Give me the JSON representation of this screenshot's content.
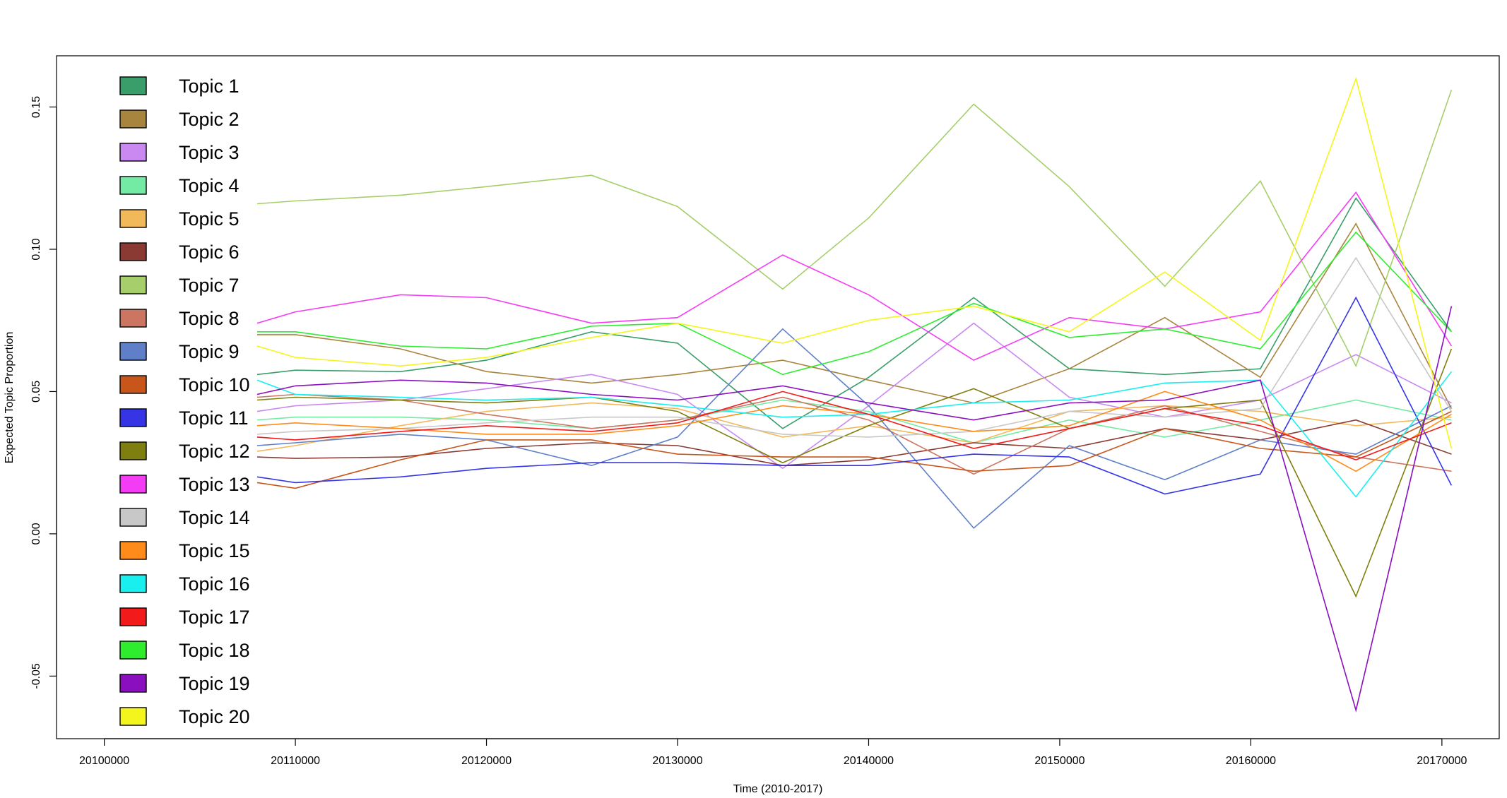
{
  "chart_data": {
    "type": "line",
    "xlabel": "Time (2010-2017)",
    "ylabel": "Expected Topic Proportion",
    "xlim": [
      20097500,
      20173000
    ],
    "ylim": [
      -0.072,
      0.168
    ],
    "x_ticks": [
      20100000,
      20110000,
      20120000,
      20130000,
      20140000,
      20150000,
      20160000,
      20170000
    ],
    "x_tick_labels": [
      "20100000",
      "20110000",
      "20120000",
      "20130000",
      "20140000",
      "20150000",
      "20160000",
      "20170000"
    ],
    "y_ticks": [
      -0.05,
      0.0,
      0.05,
      0.1,
      0.15
    ],
    "y_tick_labels": [
      "-0.05",
      "0.00",
      "0.05",
      "0.10",
      "0.15"
    ],
    "legend_position": "top-left",
    "grid": false,
    "x": [
      20108000,
      20110000,
      20115500,
      20120000,
      20125500,
      20130000,
      20135500,
      20140000,
      20145500,
      20150500,
      20155500,
      20160500,
      20165500,
      20170500
    ],
    "series": [
      {
        "name": "Topic 1",
        "color": "#3A9E6A",
        "values": [
          0.056,
          0.0575,
          0.057,
          0.061,
          0.071,
          0.067,
          0.037,
          0.055,
          0.083,
          0.058,
          0.056,
          0.058,
          0.118,
          0.071
        ]
      },
      {
        "name": "Topic 2",
        "color": "#A8853F",
        "values": [
          0.07,
          0.07,
          0.065,
          0.057,
          0.053,
          0.056,
          0.061,
          0.054,
          0.046,
          0.058,
          0.076,
          0.055,
          0.109,
          0.044
        ]
      },
      {
        "name": "Topic 3",
        "color": "#C989F0",
        "values": [
          0.043,
          0.045,
          0.047,
          0.051,
          0.056,
          0.049,
          0.023,
          0.045,
          0.074,
          0.048,
          0.041,
          0.047,
          0.063,
          0.046
        ]
      },
      {
        "name": "Topic 4",
        "color": "#74EBA5",
        "values": [
          0.04,
          0.041,
          0.041,
          0.04,
          0.037,
          0.04,
          0.047,
          0.043,
          0.032,
          0.04,
          0.034,
          0.04,
          0.047,
          0.04
        ]
      },
      {
        "name": "Topic 5",
        "color": "#F2B95A",
        "values": [
          0.029,
          0.031,
          0.038,
          0.043,
          0.046,
          0.044,
          0.034,
          0.038,
          0.032,
          0.043,
          0.045,
          0.043,
          0.038,
          0.041
        ]
      },
      {
        "name": "Topic 6",
        "color": "#8B3A33",
        "values": [
          0.027,
          0.0265,
          0.027,
          0.03,
          0.032,
          0.031,
          0.024,
          0.026,
          0.032,
          0.03,
          0.037,
          0.033,
          0.04,
          0.028
        ]
      },
      {
        "name": "Topic 7",
        "color": "#A6CE6A",
        "values": [
          0.116,
          0.117,
          0.119,
          0.122,
          0.126,
          0.115,
          0.086,
          0.111,
          0.151,
          0.122,
          0.087,
          0.124,
          0.059,
          0.156
        ]
      },
      {
        "name": "Topic 8",
        "color": "#CC7560",
        "values": [
          0.048,
          0.049,
          0.047,
          0.042,
          0.037,
          0.04,
          0.048,
          0.04,
          0.021,
          0.037,
          0.045,
          0.036,
          0.027,
          0.022
        ]
      },
      {
        "name": "Topic 9",
        "color": "#5F7FC9",
        "values": [
          0.031,
          0.032,
          0.035,
          0.033,
          0.024,
          0.034,
          0.072,
          0.045,
          0.002,
          0.031,
          0.019,
          0.033,
          0.028,
          0.045
        ]
      },
      {
        "name": "Topic 10",
        "color": "#C8561A",
        "values": [
          0.018,
          0.016,
          0.026,
          0.033,
          0.033,
          0.028,
          0.027,
          0.027,
          0.022,
          0.024,
          0.037,
          0.03,
          0.027,
          0.043
        ]
      },
      {
        "name": "Topic 11",
        "color": "#3535E6",
        "values": [
          0.02,
          0.018,
          0.02,
          0.023,
          0.025,
          0.025,
          0.024,
          0.024,
          0.028,
          0.027,
          0.014,
          0.021,
          0.083,
          0.017
        ]
      },
      {
        "name": "Topic 12",
        "color": "#7F7F0F",
        "values": [
          0.047,
          0.048,
          0.047,
          0.046,
          0.048,
          0.043,
          0.025,
          0.038,
          0.051,
          0.037,
          0.044,
          0.047,
          -0.022,
          0.065
        ]
      },
      {
        "name": "Topic 13",
        "color": "#F53CF5",
        "values": [
          0.074,
          0.078,
          0.084,
          0.083,
          0.074,
          0.076,
          0.098,
          0.084,
          0.061,
          0.076,
          0.072,
          0.078,
          0.12,
          0.066
        ]
      },
      {
        "name": "Topic 14",
        "color": "#C8C8C8",
        "values": [
          0.035,
          0.036,
          0.037,
          0.039,
          0.041,
          0.041,
          0.035,
          0.034,
          0.036,
          0.043,
          0.041,
          0.044,
          0.097,
          0.043
        ]
      },
      {
        "name": "Topic 15",
        "color": "#FF8C1A",
        "values": [
          0.038,
          0.039,
          0.037,
          0.035,
          0.035,
          0.038,
          0.045,
          0.042,
          0.036,
          0.038,
          0.05,
          0.04,
          0.022,
          0.042
        ]
      },
      {
        "name": "Topic 16",
        "color": "#19EFEF",
        "values": [
          0.054,
          0.049,
          0.048,
          0.047,
          0.048,
          0.045,
          0.041,
          0.042,
          0.046,
          0.047,
          0.053,
          0.054,
          0.013,
          0.057
        ]
      },
      {
        "name": "Topic 17",
        "color": "#F21A1A",
        "values": [
          0.034,
          0.033,
          0.036,
          0.038,
          0.036,
          0.039,
          0.05,
          0.042,
          0.03,
          0.037,
          0.044,
          0.038,
          0.026,
          0.039
        ]
      },
      {
        "name": "Topic 18",
        "color": "#2EED2E",
        "values": [
          0.071,
          0.071,
          0.066,
          0.065,
          0.073,
          0.074,
          0.056,
          0.064,
          0.081,
          0.069,
          0.072,
          0.065,
          0.106,
          0.071
        ]
      },
      {
        "name": "Topic 19",
        "color": "#8A0FBF",
        "values": [
          0.049,
          0.052,
          0.054,
          0.053,
          0.049,
          0.047,
          0.052,
          0.046,
          0.04,
          0.046,
          0.047,
          0.054,
          -0.062,
          0.08
        ]
      },
      {
        "name": "Topic 20",
        "color": "#F5F51E",
        "values": [
          0.066,
          0.062,
          0.059,
          0.062,
          0.069,
          0.074,
          0.067,
          0.075,
          0.08,
          0.071,
          0.092,
          0.068,
          0.16,
          0.03
        ]
      }
    ]
  }
}
